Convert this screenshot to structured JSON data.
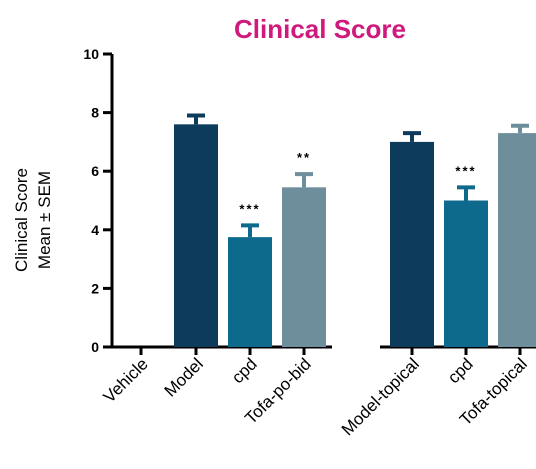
{
  "chart_data": {
    "type": "bar",
    "title": "Clinical Score",
    "ylabel_line1": "Clinical Score",
    "ylabel_line2": "Mean ± SEM",
    "ylim": [
      0,
      10
    ],
    "yticks": [
      0,
      2,
      4,
      6,
      8,
      10
    ],
    "grid": false,
    "categories": [
      "Vehicle",
      "Model",
      "cpd",
      "Tofa-po-bid",
      "Model-topical",
      "cpd",
      "Tofa-topical"
    ],
    "values": [
      0,
      7.6,
      3.75,
      5.45,
      7.0,
      5.0,
      7.3
    ],
    "errors": [
      0,
      0.3,
      0.4,
      0.45,
      0.3,
      0.45,
      0.25
    ],
    "significance": [
      "",
      "",
      "***",
      "**",
      "",
      "***",
      ""
    ],
    "colors": [
      "#0d3b5c",
      "#0d3b5c",
      "#0e6a8c",
      "#6f8e9c",
      "#0d3b5c",
      "#0e6a8c",
      "#6f8e9c"
    ],
    "title_color": "#d0197c",
    "groups": [
      [
        0,
        1,
        2,
        3
      ],
      [
        4,
        5,
        6
      ]
    ]
  }
}
